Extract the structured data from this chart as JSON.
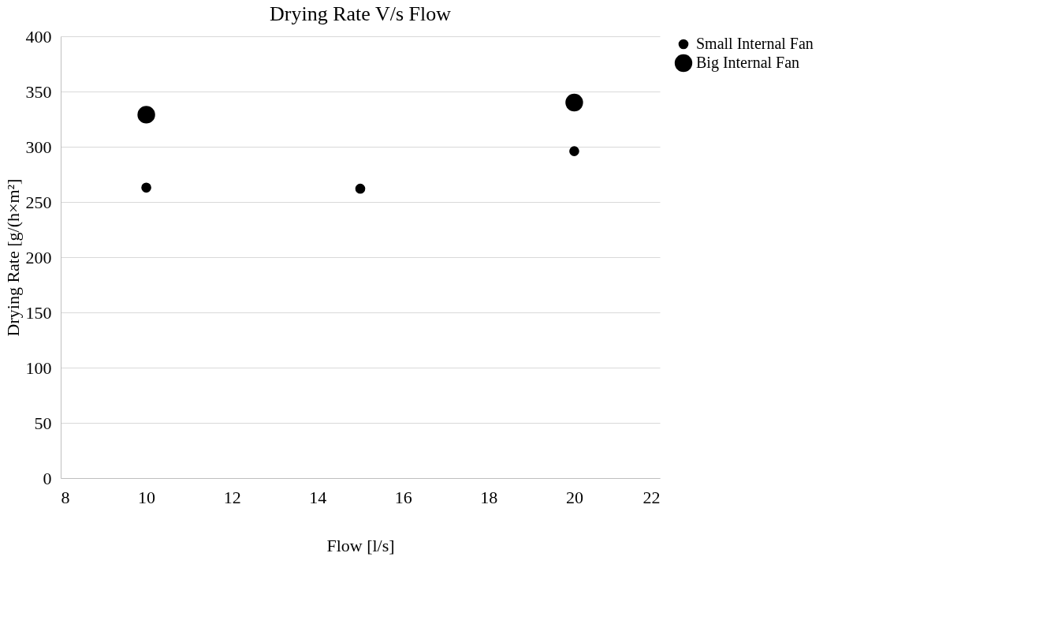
{
  "chart_data": {
    "type": "scatter",
    "title": "Drying Rate V/s Flow",
    "xlabel": "Flow [l/s]",
    "ylabel": "Drying Rate [g/(h×m²]",
    "series": [
      {
        "name": "Small Internal Fan",
        "color": "#000000",
        "x": [
          10,
          15,
          20
        ],
        "values": [
          263,
          262,
          296
        ]
      },
      {
        "name": "Big Internal Fan",
        "color": "#000000",
        "x": [
          10,
          20
        ],
        "values": [
          329,
          340
        ]
      }
    ],
    "xlim": [
      8,
      22
    ],
    "xticks": [
      8,
      10,
      12,
      14,
      16,
      18,
      20,
      22
    ],
    "ylim": [
      0,
      400
    ],
    "yticks": [
      0,
      50,
      100,
      150,
      200,
      250,
      300,
      350,
      400
    ],
    "grid": "y",
    "legend": "right",
    "marker": "circle"
  }
}
